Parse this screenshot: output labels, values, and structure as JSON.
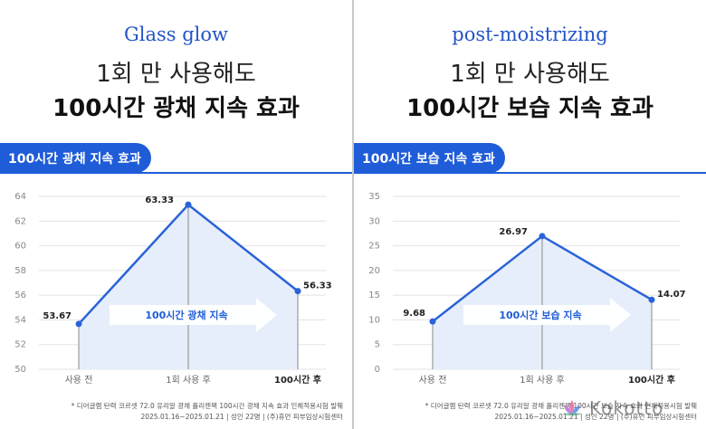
{
  "left": {
    "script_title": "Glass glow",
    "headline_line1": "1회 만 사용해도",
    "headline_line2": "100시간 광채 지속 효과",
    "section_label": "100시간 광채 지속 효과",
    "arrow_text": "100시간 광채 지속",
    "footnote_line1": "* 디어글램 탄력 코르셋 72.0 유리알 광채 폴리젠팩 100시간 광채 지속 효과 인체적용시험 발췌",
    "footnote_line2": "2025.01.16~2025.01.21   |   성인 22명   |   (주)휴먼 피부임상시험센터"
  },
  "right": {
    "script_title": "post-moistrizing",
    "headline_line1": "1회 만 사용해도",
    "headline_line2": "100시간 보습 지속 효과",
    "section_label": "100시간 보습 지속 효과",
    "arrow_text": "100시간 보습 지속",
    "footnote_line1": "* 디어글램 탄력 코르셋 72.0 유리알 광채 폴리젠팩 100시간 보습 지속 효과 인체적용시험 발췌",
    "footnote_line2": "2025.01.16~2025.01.21   |   성인 22명   |   (주)휴먼 피부임상시험센터"
  },
  "watermark": {
    "text": "Kokotto",
    "icon": "lotus-logo-icon"
  },
  "colors": {
    "accent": "#1f5cd8",
    "line": "#2a63d8",
    "fill": "#e6eefb",
    "arrow": "#ffffff"
  },
  "chart_data": [
    {
      "type": "line",
      "categories": [
        "사용 전",
        "1회 사용 후",
        "100시간 후"
      ],
      "values": [
        53.67,
        63.33,
        56.33
      ],
      "data_labels": [
        "53.67",
        "63.33",
        "56.33"
      ],
      "ylim": [
        50,
        64
      ],
      "yticks": [
        50,
        52,
        54,
        56,
        58,
        60,
        62,
        64
      ],
      "grid": true
    },
    {
      "type": "line",
      "categories": [
        "사용 전",
        "1회 사용 후",
        "100시간 후"
      ],
      "values": [
        9.68,
        26.97,
        14.07
      ],
      "data_labels": [
        "9.68",
        "26.97",
        "14.07"
      ],
      "ylim": [
        0,
        35
      ],
      "yticks": [
        0,
        5,
        10,
        15,
        20,
        25,
        30,
        35
      ],
      "grid": true
    }
  ]
}
